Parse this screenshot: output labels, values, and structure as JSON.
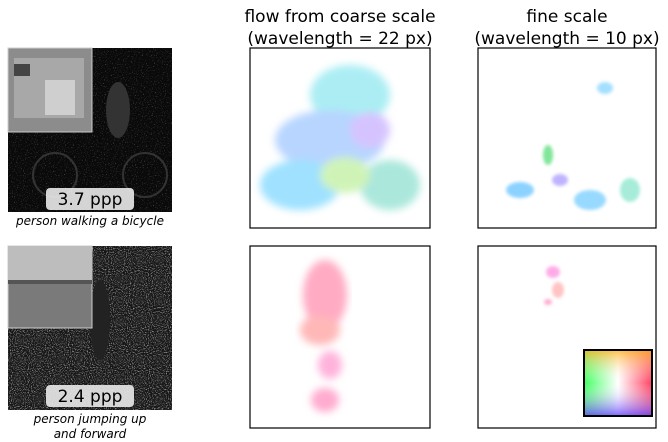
{
  "columns": [
    {
      "line1": "flow from coarse scale",
      "line2": "(wavelength = 22 px)"
    },
    {
      "line1": "fine scale",
      "line2": "(wavelength = 10 px)"
    }
  ],
  "rows": [
    {
      "badge": "3.7 ppp",
      "caption": [
        "person walking a bicycle"
      ]
    },
    {
      "badge": "2.4 ppp",
      "caption": [
        "person jumping up",
        "and forward"
      ]
    }
  ]
}
